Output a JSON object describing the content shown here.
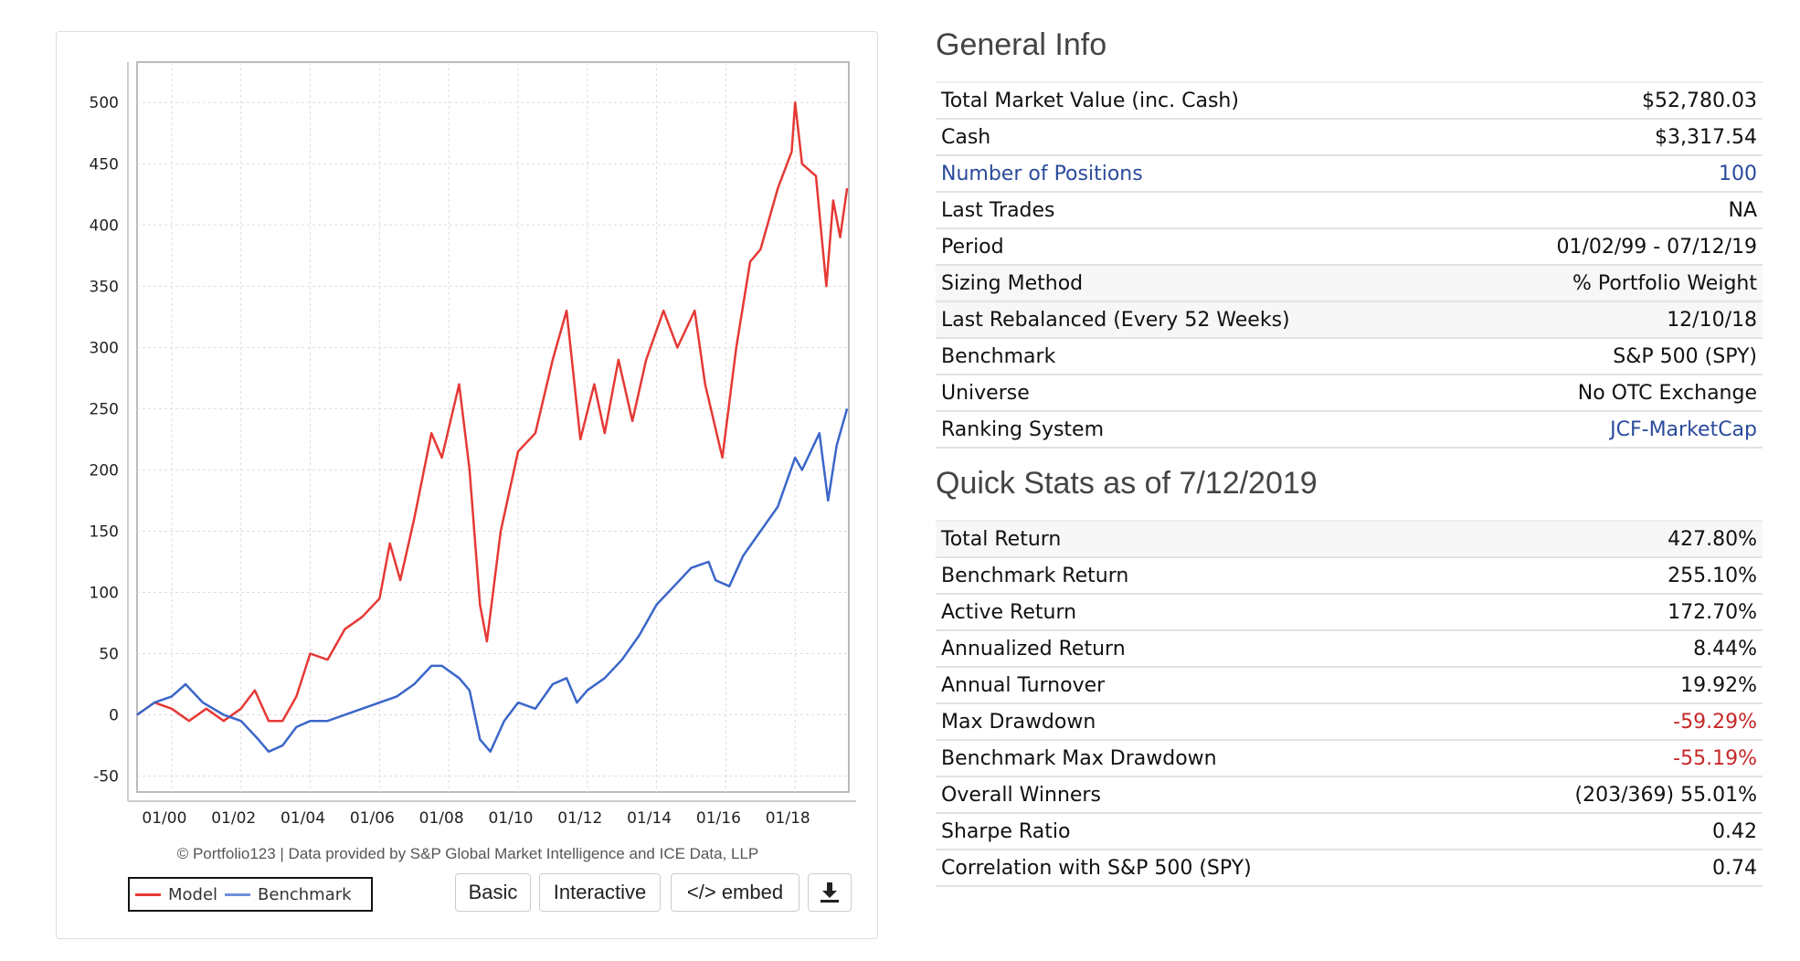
{
  "chart_data": {
    "type": "line",
    "title": "",
    "xlabel": "",
    "ylabel": "",
    "ylim": [
      -63,
      533
    ],
    "xlim": [
      1999.0,
      2019.55
    ],
    "grid": true,
    "legend_position": "bottom-left",
    "y_ticks": [
      500,
      450,
      400,
      350,
      300,
      250,
      200,
      150,
      100,
      50,
      0,
      -50
    ],
    "x_ticks": [
      {
        "x": 2000,
        "label": "01/00"
      },
      {
        "x": 2002,
        "label": "01/02"
      },
      {
        "x": 2004,
        "label": "01/04"
      },
      {
        "x": 2006,
        "label": "01/06"
      },
      {
        "x": 2008,
        "label": "01/08"
      },
      {
        "x": 2010,
        "label": "01/10"
      },
      {
        "x": 2012,
        "label": "01/12"
      },
      {
        "x": 2014,
        "label": "01/14"
      },
      {
        "x": 2016,
        "label": "01/16"
      },
      {
        "x": 2018,
        "label": "01/18"
      }
    ],
    "series": [
      {
        "name": "Model",
        "color": "#e53935",
        "x": [
          1999.0,
          1999.5,
          2000.0,
          2000.5,
          2001.0,
          2001.5,
          2002.0,
          2002.4,
          2002.8,
          2003.2,
          2003.6,
          2004.0,
          2004.5,
          2005.0,
          2005.5,
          2006.0,
          2006.3,
          2006.6,
          2007.0,
          2007.5,
          2007.8,
          2008.3,
          2008.6,
          2008.9,
          2009.1,
          2009.5,
          2010.0,
          2010.5,
          2011.0,
          2011.4,
          2011.8,
          2012.2,
          2012.5,
          2012.9,
          2013.3,
          2013.7,
          2014.2,
          2014.6,
          2015.1,
          2015.4,
          2015.9,
          2016.3,
          2016.7,
          2017.0,
          2017.5,
          2017.9,
          2018.0,
          2018.2,
          2018.6,
          2018.9,
          2019.1,
          2019.3,
          2019.5
        ],
        "values": [
          0,
          10,
          5,
          -5,
          5,
          -5,
          5,
          20,
          -5,
          -5,
          15,
          50,
          45,
          70,
          80,
          95,
          140,
          110,
          160,
          230,
          210,
          270,
          200,
          90,
          60,
          150,
          215,
          230,
          290,
          330,
          225,
          270,
          230,
          290,
          240,
          290,
          330,
          300,
          330,
          270,
          210,
          300,
          370,
          380,
          430,
          460,
          500,
          450,
          440,
          350,
          420,
          390,
          430
        ]
      },
      {
        "name": "Benchmark",
        "color": "#3b66c9",
        "x": [
          1999.0,
          1999.5,
          2000.0,
          2000.4,
          2000.9,
          2001.5,
          2002.0,
          2002.5,
          2002.8,
          2003.2,
          2003.6,
          2004.0,
          2004.5,
          2005.0,
          2005.5,
          2006.0,
          2006.5,
          2007.0,
          2007.5,
          2007.8,
          2008.3,
          2008.6,
          2008.9,
          2009.2,
          2009.6,
          2010.0,
          2010.5,
          2011.0,
          2011.4,
          2011.7,
          2012.0,
          2012.5,
          2013.0,
          2013.5,
          2014.0,
          2014.5,
          2015.0,
          2015.5,
          2015.7,
          2016.1,
          2016.5,
          2017.0,
          2017.5,
          2018.0,
          2018.2,
          2018.7,
          2018.95,
          2019.2,
          2019.5
        ],
        "values": [
          0,
          10,
          15,
          25,
          10,
          0,
          -5,
          -20,
          -30,
          -25,
          -10,
          -5,
          -5,
          0,
          5,
          10,
          15,
          25,
          40,
          40,
          30,
          20,
          -20,
          -30,
          -5,
          10,
          5,
          25,
          30,
          10,
          20,
          30,
          45,
          65,
          90,
          105,
          120,
          125,
          110,
          105,
          130,
          150,
          170,
          210,
          200,
          230,
          175,
          220,
          250
        ]
      }
    ]
  },
  "chart_footer": {
    "copyright": "© Portfolio123 | Data provided by S&P Global Market Intelligence and ICE Data, LLP",
    "legend": {
      "model": "Model",
      "benchmark": "Benchmark"
    },
    "buttons": {
      "basic": "Basic",
      "interactive": "Interactive",
      "embed": "</> embed",
      "download_icon": "download-icon"
    }
  },
  "general_info": {
    "title": "General Info",
    "rows": [
      {
        "label": "Total Market Value (inc. Cash)",
        "value": "$52,780.03"
      },
      {
        "label": "Cash",
        "value": "$3,317.54"
      },
      {
        "label": "Number of Positions",
        "value": "100"
      },
      {
        "label": "Last Trades",
        "value": "NA"
      },
      {
        "label": "Period",
        "value": "01/02/99 - 07/12/19"
      },
      {
        "label": "Sizing Method",
        "value": "% Portfolio Weight"
      },
      {
        "label": "Last Rebalanced (Every 52 Weeks)",
        "value": "12/10/18"
      },
      {
        "label": "Benchmark",
        "value": "S&P 500 (SPY)"
      },
      {
        "label": "Universe",
        "value": "No OTC Exchange"
      },
      {
        "label": "Ranking System",
        "value": "JCF-MarketCap"
      }
    ]
  },
  "quick_stats": {
    "title": "Quick Stats as of 7/12/2019",
    "rows": [
      {
        "label": "Total Return",
        "value": "427.80%"
      },
      {
        "label": "Benchmark Return",
        "value": "255.10%"
      },
      {
        "label": "Active Return",
        "value": "172.70%"
      },
      {
        "label": "Annualized Return",
        "value": "8.44%"
      },
      {
        "label": "Annual Turnover",
        "value": "19.92%"
      },
      {
        "label": "Max Drawdown",
        "value": "-59.29%"
      },
      {
        "label": "Benchmark Max Drawdown",
        "value": "-55.19%"
      },
      {
        "label": "Overall Winners",
        "value": "(203/369) 55.01%"
      },
      {
        "label": "Sharpe Ratio",
        "value": "0.42"
      },
      {
        "label": "Correlation with S&P 500 (SPY)",
        "value": "0.74"
      }
    ]
  },
  "colors": {
    "link": "#2a4a9c",
    "negative": "#c62828",
    "model": "#e53935",
    "benchmark": "#3b66c9"
  }
}
